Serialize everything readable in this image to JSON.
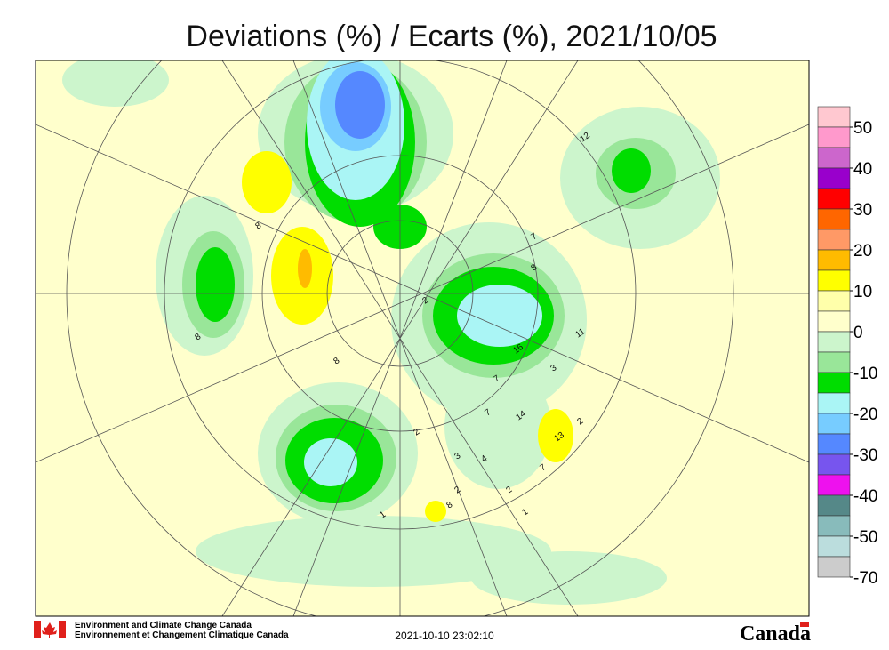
{
  "header": {
    "title": "Deviations (%) / Ecarts (%), 2021/10/05"
  },
  "legend": {
    "colors": [
      "#ffc8d0",
      "#ff99cc",
      "#cc66cc",
      "#9900cc",
      "#ff0000",
      "#ff6600",
      "#ff9966",
      "#ffbb00",
      "#ffff00",
      "#ffffaa",
      "#ffffcc",
      "#ccf5cc",
      "#99e699",
      "#00dd00",
      "#aaf5f5",
      "#77ccff",
      "#5588ff",
      "#7755ee",
      "#ee11ee",
      "#558888",
      "#88bbbb",
      "#bbdddd",
      "#cccccc"
    ],
    "labels": [
      "50",
      "40",
      "30",
      "20",
      "10",
      "0",
      "-10",
      "-20",
      "-30",
      "-40",
      "-50",
      "-70"
    ]
  },
  "stations": [
    "8",
    "7",
    "2",
    "8",
    "8",
    "16",
    "11",
    "3",
    "14",
    "13",
    "12",
    "7",
    "4",
    "2",
    "1",
    "3",
    "2",
    "8",
    "1",
    "2",
    "7",
    "2",
    "7",
    "8"
  ],
  "footer": {
    "agency_en": "Environment and Climate Change Canada",
    "agency_fr": "Environnement et Changement Climatique Canada",
    "timestamp": "2021-10-10 23:02:10",
    "wordmark": "Canada"
  }
}
